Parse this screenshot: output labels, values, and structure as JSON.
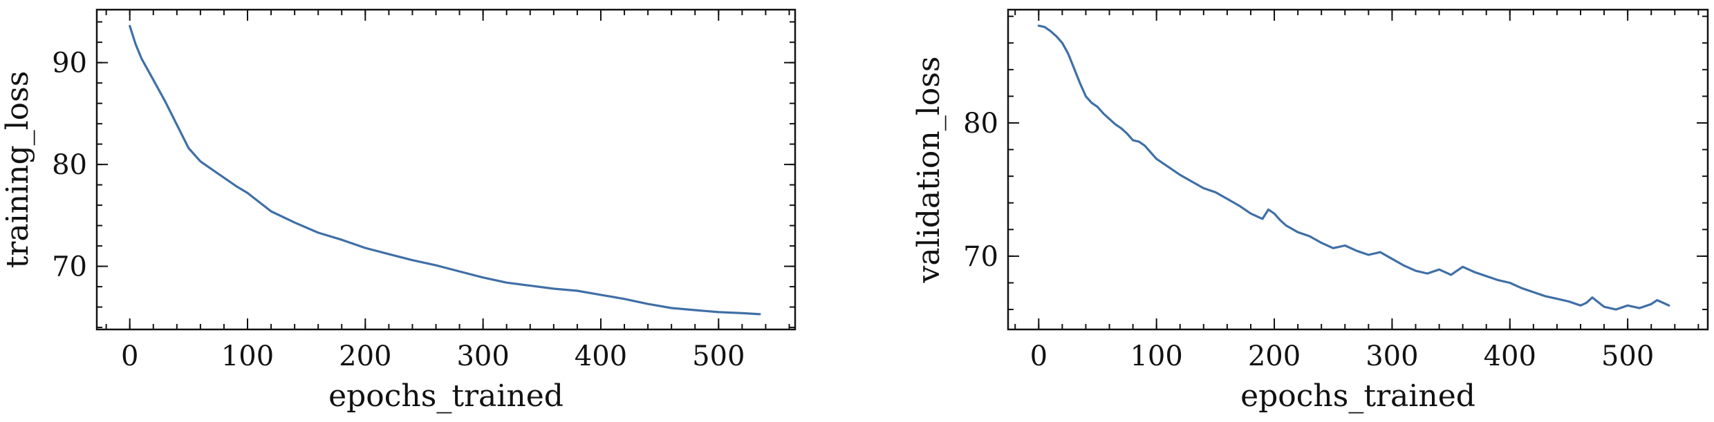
{
  "chart_data": [
    {
      "type": "line",
      "title": "",
      "xlabel": "epochs_trained",
      "ylabel": "training_loss",
      "xlim": [
        -28,
        565
      ],
      "ylim": [
        63.8,
        95.2
      ],
      "xticks": [
        0,
        100,
        200,
        300,
        400,
        500
      ],
      "yticks": [
        70,
        80,
        90
      ],
      "x_minor_step": 20,
      "y_minor_step": 2,
      "grid": false,
      "legend": "none",
      "line_color": "#3f6fa6",
      "series": [
        {
          "x": [
            0,
            5,
            10,
            20,
            30,
            40,
            50,
            60,
            75,
            90,
            100,
            120,
            140,
            160,
            180,
            200,
            220,
            240,
            260,
            280,
            300,
            320,
            340,
            360,
            380,
            400,
            420,
            440,
            460,
            480,
            500,
            520,
            535
          ],
          "y": [
            93.6,
            91.8,
            90.4,
            88.3,
            86.2,
            83.9,
            81.6,
            80.3,
            79.1,
            77.9,
            77.2,
            75.4,
            74.3,
            73.3,
            72.6,
            71.8,
            71.2,
            70.6,
            70.1,
            69.5,
            68.9,
            68.4,
            68.1,
            67.8,
            67.6,
            67.2,
            66.8,
            66.3,
            65.9,
            65.7,
            65.5,
            65.4,
            65.3
          ]
        }
      ]
    },
    {
      "type": "line",
      "title": "",
      "xlabel": "epochs_trained",
      "ylabel": "validation_loss",
      "xlim": [
        -26,
        568
      ],
      "ylim": [
        64.5,
        88.5
      ],
      "xticks": [
        0,
        100,
        200,
        300,
        400,
        500
      ],
      "yticks": [
        70,
        80
      ],
      "x_minor_step": 20,
      "y_minor_step": 2,
      "grid": false,
      "legend": "none",
      "line_color": "#3f6fa6",
      "series": [
        {
          "x": [
            0,
            5,
            10,
            15,
            20,
            25,
            30,
            35,
            40,
            45,
            50,
            55,
            60,
            65,
            70,
            75,
            80,
            85,
            90,
            95,
            100,
            110,
            120,
            130,
            140,
            150,
            160,
            170,
            180,
            190,
            195,
            200,
            205,
            210,
            220,
            230,
            240,
            250,
            260,
            270,
            280,
            290,
            300,
            310,
            320,
            330,
            340,
            350,
            360,
            370,
            380,
            390,
            400,
            410,
            420,
            430,
            440,
            450,
            460,
            465,
            470,
            480,
            490,
            500,
            510,
            520,
            525,
            530,
            535
          ],
          "y": [
            87.3,
            87.2,
            86.9,
            86.5,
            86.0,
            85.2,
            84.1,
            83.0,
            82.0,
            81.5,
            81.2,
            80.7,
            80.3,
            79.9,
            79.6,
            79.2,
            78.7,
            78.6,
            78.3,
            77.8,
            77.3,
            76.7,
            76.1,
            75.6,
            75.1,
            74.8,
            74.3,
            73.8,
            73.2,
            72.8,
            73.5,
            73.2,
            72.7,
            72.3,
            71.8,
            71.5,
            71.0,
            70.6,
            70.8,
            70.4,
            70.1,
            70.3,
            69.8,
            69.3,
            68.9,
            68.7,
            69.0,
            68.6,
            69.2,
            68.8,
            68.5,
            68.2,
            68.0,
            67.6,
            67.3,
            67.0,
            66.8,
            66.6,
            66.3,
            66.5,
            66.9,
            66.2,
            66.0,
            66.3,
            66.1,
            66.4,
            66.7,
            66.5,
            66.3
          ]
        }
      ]
    }
  ]
}
